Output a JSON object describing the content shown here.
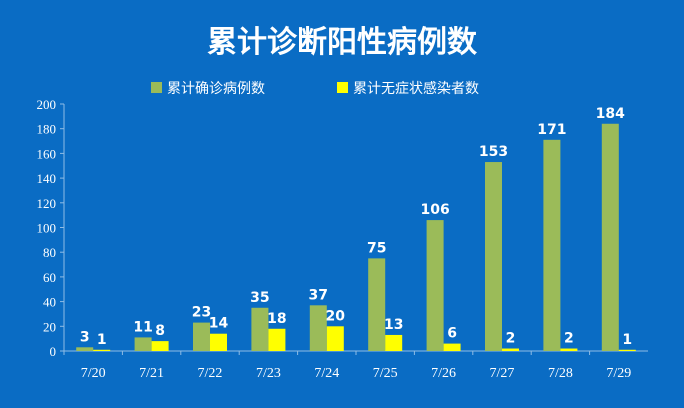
{
  "chart_data": {
    "type": "bar",
    "title": "累计诊断阳性病例数",
    "categories": [
      "7/20",
      "7/21",
      "7/22",
      "7/23",
      "7/24",
      "7/25",
      "7/26",
      "7/27",
      "7/28",
      "7/29"
    ],
    "series": [
      {
        "name": "累计确诊病例数",
        "color": "#9bbb59",
        "values": [
          3,
          11,
          23,
          35,
          37,
          75,
          106,
          153,
          171,
          184
        ]
      },
      {
        "name": "累计无症状感染者数",
        "color": "#ffff00",
        "values": [
          1,
          8,
          14,
          18,
          20,
          13,
          6,
          2,
          2,
          1
        ]
      }
    ],
    "ylim": [
      0,
      200
    ],
    "yticks": [
      0,
      20,
      40,
      60,
      80,
      100,
      120,
      140,
      160,
      180,
      200
    ],
    "xlabel": "",
    "ylabel": "",
    "grid": false,
    "legend_position": "top-center",
    "data_labels": true
  },
  "colors": {
    "background": "#0a6cc4",
    "text": "#ffffff",
    "axis": "#8fbce6"
  }
}
